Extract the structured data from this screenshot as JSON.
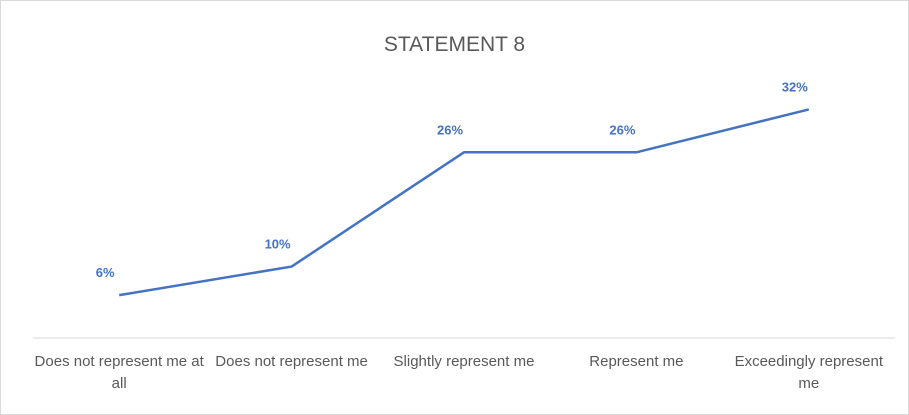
{
  "chart_data": {
    "type": "line",
    "title": "STATEMENT 8",
    "categories": [
      "Does not represent me at all",
      "Does not represent me",
      "Slightly represent me",
      "Represent me",
      "Exceedingly represent me"
    ],
    "values": [
      6,
      10,
      26,
      26,
      32
    ],
    "value_labels": [
      "6%",
      "10%",
      "26%",
      "26%",
      "32%"
    ],
    "color": "#4472c4",
    "ylim": [
      0,
      35
    ]
  }
}
